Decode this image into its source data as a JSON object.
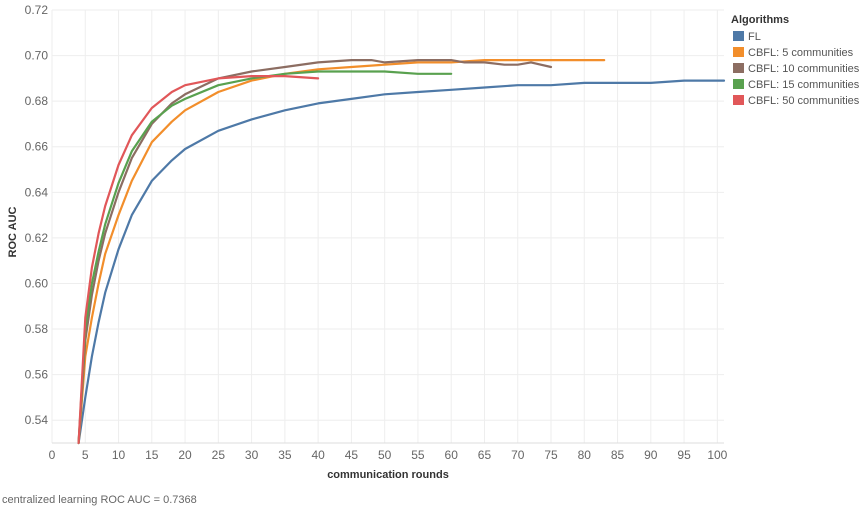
{
  "chart_data": {
    "type": "line",
    "title": "",
    "xlabel": "communication rounds",
    "ylabel": "ROC AUC",
    "xlim": [
      0,
      101
    ],
    "ylim": [
      0.53,
      0.72
    ],
    "x_ticks": [
      0,
      5,
      10,
      15,
      20,
      25,
      30,
      35,
      40,
      45,
      50,
      55,
      60,
      65,
      70,
      75,
      80,
      85,
      90,
      95,
      100
    ],
    "y_ticks": [
      0.54,
      0.56,
      0.58,
      0.6,
      0.62,
      0.64,
      0.66,
      0.68,
      0.7,
      0.72
    ],
    "grid": true,
    "legend": {
      "title": "Algorithms",
      "position": "top-right"
    },
    "footer_note": "centralized learning ROC AUC = 0.7368",
    "series": [
      {
        "name": "FL",
        "color": "#4e79a7",
        "points": [
          [
            4,
            0.53
          ],
          [
            5,
            0.55
          ],
          [
            6,
            0.568
          ],
          [
            7,
            0.583
          ],
          [
            8,
            0.596
          ],
          [
            10,
            0.615
          ],
          [
            12,
            0.63
          ],
          [
            15,
            0.645
          ],
          [
            18,
            0.654
          ],
          [
            20,
            0.659
          ],
          [
            25,
            0.667
          ],
          [
            30,
            0.672
          ],
          [
            35,
            0.676
          ],
          [
            40,
            0.679
          ],
          [
            45,
            0.681
          ],
          [
            50,
            0.683
          ],
          [
            55,
            0.684
          ],
          [
            60,
            0.685
          ],
          [
            65,
            0.686
          ],
          [
            70,
            0.687
          ],
          [
            75,
            0.687
          ],
          [
            80,
            0.688
          ],
          [
            85,
            0.688
          ],
          [
            90,
            0.688
          ],
          [
            95,
            0.689
          ],
          [
            100,
            0.689
          ],
          [
            101,
            0.689
          ]
        ]
      },
      {
        "name": "CBFL: 5 communities",
        "color": "#f28e2b",
        "points": [
          [
            4,
            0.53
          ],
          [
            5,
            0.568
          ],
          [
            6,
            0.585
          ],
          [
            7,
            0.6
          ],
          [
            8,
            0.613
          ],
          [
            10,
            0.63
          ],
          [
            12,
            0.645
          ],
          [
            15,
            0.662
          ],
          [
            18,
            0.671
          ],
          [
            20,
            0.676
          ],
          [
            25,
            0.684
          ],
          [
            30,
            0.689
          ],
          [
            35,
            0.692
          ],
          [
            40,
            0.694
          ],
          [
            45,
            0.695
          ],
          [
            50,
            0.696
          ],
          [
            55,
            0.697
          ],
          [
            60,
            0.697
          ],
          [
            65,
            0.698
          ],
          [
            70,
            0.698
          ],
          [
            75,
            0.698
          ],
          [
            80,
            0.698
          ],
          [
            83,
            0.698
          ]
        ]
      },
      {
        "name": "CBFL: 10 communities",
        "color": "#8c6d62",
        "points": [
          [
            4,
            0.53
          ],
          [
            5,
            0.575
          ],
          [
            6,
            0.595
          ],
          [
            7,
            0.61
          ],
          [
            8,
            0.622
          ],
          [
            10,
            0.64
          ],
          [
            12,
            0.655
          ],
          [
            15,
            0.67
          ],
          [
            18,
            0.679
          ],
          [
            20,
            0.683
          ],
          [
            25,
            0.69
          ],
          [
            30,
            0.693
          ],
          [
            35,
            0.695
          ],
          [
            40,
            0.697
          ],
          [
            45,
            0.698
          ],
          [
            48,
            0.698
          ],
          [
            50,
            0.697
          ],
          [
            55,
            0.698
          ],
          [
            60,
            0.698
          ],
          [
            62,
            0.697
          ],
          [
            65,
            0.697
          ],
          [
            68,
            0.696
          ],
          [
            70,
            0.696
          ],
          [
            72,
            0.697
          ],
          [
            75,
            0.695
          ]
        ]
      },
      {
        "name": "CBFL: 15 communities",
        "color": "#59a14f",
        "points": [
          [
            4,
            0.53
          ],
          [
            5,
            0.58
          ],
          [
            6,
            0.6
          ],
          [
            7,
            0.614
          ],
          [
            8,
            0.626
          ],
          [
            10,
            0.644
          ],
          [
            12,
            0.658
          ],
          [
            15,
            0.671
          ],
          [
            18,
            0.678
          ],
          [
            20,
            0.681
          ],
          [
            25,
            0.687
          ],
          [
            30,
            0.69
          ],
          [
            35,
            0.692
          ],
          [
            40,
            0.693
          ],
          [
            45,
            0.693
          ],
          [
            50,
            0.693
          ],
          [
            55,
            0.692
          ],
          [
            60,
            0.692
          ]
        ]
      },
      {
        "name": "CBFL: 50 communities",
        "color": "#e15759",
        "points": [
          [
            4,
            0.53
          ],
          [
            5,
            0.585
          ],
          [
            6,
            0.607
          ],
          [
            7,
            0.622
          ],
          [
            8,
            0.634
          ],
          [
            10,
            0.652
          ],
          [
            12,
            0.665
          ],
          [
            15,
            0.677
          ],
          [
            18,
            0.684
          ],
          [
            20,
            0.687
          ],
          [
            25,
            0.69
          ],
          [
            30,
            0.691
          ],
          [
            35,
            0.691
          ],
          [
            40,
            0.69
          ]
        ]
      }
    ]
  }
}
